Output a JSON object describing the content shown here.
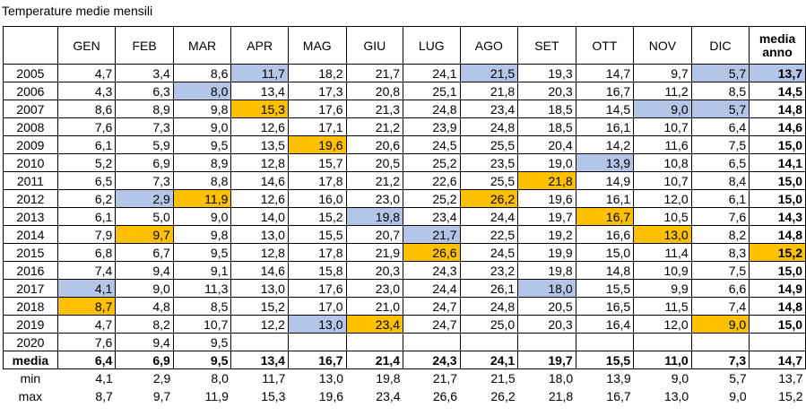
{
  "title": "Temperature medie mensili",
  "colors": {
    "min_highlight": "#b4c6e7",
    "max_highlight": "#ffc000"
  },
  "header": {
    "months": [
      "GEN",
      "FEB",
      "MAR",
      "APR",
      "MAG",
      "GIU",
      "LUG",
      "AGO",
      "SET",
      "OTT",
      "NOV",
      "DIC"
    ],
    "annual_line1": "media",
    "annual_line2": "anno"
  },
  "rows": [
    {
      "year": "2005",
      "values": [
        "4,7",
        "3,4",
        "8,6",
        "11,7",
        "18,2",
        "21,7",
        "24,1",
        "21,5",
        "19,3",
        "14,7",
        "9,7",
        "5,7"
      ],
      "annual": "13,7",
      "hl": [
        "",
        "",
        "",
        "blue",
        "",
        "",
        "",
        "blue",
        "",
        "",
        "",
        "blue"
      ],
      "annual_hl": "blue"
    },
    {
      "year": "2006",
      "values": [
        "4,3",
        "6,3",
        "8,0",
        "13,4",
        "17,3",
        "20,8",
        "25,1",
        "21,8",
        "20,3",
        "16,7",
        "11,2",
        "8,5"
      ],
      "annual": "14,5",
      "hl": [
        "",
        "",
        "blue",
        "",
        "",
        "",
        "",
        "",
        "",
        "",
        "",
        ""
      ],
      "annual_hl": ""
    },
    {
      "year": "2007",
      "values": [
        "8,6",
        "8,9",
        "9,8",
        "15,3",
        "17,6",
        "21,3",
        "24,8",
        "23,4",
        "18,5",
        "14,5",
        "9,0",
        "5,7"
      ],
      "annual": "14,8",
      "hl": [
        "",
        "",
        "",
        "orange",
        "",
        "",
        "",
        "",
        "",
        "",
        "blue",
        "blue"
      ],
      "annual_hl": ""
    },
    {
      "year": "2008",
      "values": [
        "7,6",
        "7,3",
        "9,0",
        "12,6",
        "17,1",
        "21,2",
        "23,9",
        "24,8",
        "18,5",
        "16,1",
        "10,7",
        "6,4"
      ],
      "annual": "14,6",
      "hl": [
        "",
        "",
        "",
        "",
        "",
        "",
        "",
        "",
        "",
        "",
        "",
        ""
      ],
      "annual_hl": ""
    },
    {
      "year": "2009",
      "values": [
        "6,1",
        "5,9",
        "9,5",
        "13,5",
        "19,6",
        "20,6",
        "24,5",
        "25,5",
        "20,4",
        "14,2",
        "11,6",
        "7,5"
      ],
      "annual": "15,0",
      "hl": [
        "",
        "",
        "",
        "",
        "orange",
        "",
        "",
        "",
        "",
        "",
        "",
        ""
      ],
      "annual_hl": ""
    },
    {
      "year": "2010",
      "values": [
        "5,2",
        "6,9",
        "8,9",
        "12,8",
        "15,7",
        "20,5",
        "25,2",
        "23,5",
        "19,0",
        "13,9",
        "10,8",
        "6,5"
      ],
      "annual": "14,1",
      "hl": [
        "",
        "",
        "",
        "",
        "",
        "",
        "",
        "",
        "",
        "blue",
        "",
        ""
      ],
      "annual_hl": ""
    },
    {
      "year": "2011",
      "values": [
        "6,5",
        "7,3",
        "8,8",
        "14,6",
        "17,8",
        "21,2",
        "22,6",
        "25,5",
        "21,8",
        "14,9",
        "10,7",
        "8,4"
      ],
      "annual": "15,0",
      "hl": [
        "",
        "",
        "",
        "",
        "",
        "",
        "",
        "",
        "orange",
        "",
        "",
        ""
      ],
      "annual_hl": ""
    },
    {
      "year": "2012",
      "values": [
        "6,2",
        "2,9",
        "11,9",
        "12,6",
        "16,0",
        "23,0",
        "25,2",
        "26,2",
        "19,6",
        "16,1",
        "12,0",
        "6,1"
      ],
      "annual": "15,0",
      "hl": [
        "",
        "blue",
        "orange",
        "",
        "",
        "",
        "",
        "orange",
        "",
        "",
        "",
        ""
      ],
      "annual_hl": ""
    },
    {
      "year": "2013",
      "values": [
        "6,1",
        "5,0",
        "9,0",
        "14,0",
        "15,2",
        "19,8",
        "23,4",
        "24,4",
        "19,7",
        "16,7",
        "10,5",
        "7,6"
      ],
      "annual": "14,3",
      "hl": [
        "",
        "",
        "",
        "",
        "",
        "blue",
        "",
        "",
        "",
        "orange",
        "",
        ""
      ],
      "annual_hl": ""
    },
    {
      "year": "2014",
      "values": [
        "7,9",
        "9,7",
        "9,8",
        "13,0",
        "15,5",
        "20,7",
        "21,7",
        "22,5",
        "19,2",
        "16,6",
        "13,0",
        "8,2"
      ],
      "annual": "14,8",
      "hl": [
        "",
        "orange",
        "",
        "",
        "",
        "",
        "blue",
        "",
        "",
        "",
        "orange",
        ""
      ],
      "annual_hl": ""
    },
    {
      "year": "2015",
      "values": [
        "6,8",
        "6,7",
        "9,5",
        "12,8",
        "17,8",
        "21,9",
        "26,6",
        "24,5",
        "19,9",
        "15,0",
        "11,4",
        "8,3"
      ],
      "annual": "15,2",
      "hl": [
        "",
        "",
        "",
        "",
        "",
        "",
        "orange",
        "",
        "",
        "",
        "",
        ""
      ],
      "annual_hl": "orange"
    },
    {
      "year": "2016",
      "values": [
        "7,4",
        "9,4",
        "9,1",
        "14,6",
        "15,8",
        "20,3",
        "24,3",
        "23,2",
        "19,8",
        "14,8",
        "10,9",
        "7,5"
      ],
      "annual": "15,0",
      "hl": [
        "",
        "",
        "",
        "",
        "",
        "",
        "",
        "",
        "",
        "",
        "",
        ""
      ],
      "annual_hl": ""
    },
    {
      "year": "2017",
      "values": [
        "4,1",
        "9,0",
        "11,3",
        "13,0",
        "17,6",
        "23,0",
        "24,4",
        "26,1",
        "18,0",
        "15,5",
        "9,9",
        "6,6"
      ],
      "annual": "14,9",
      "hl": [
        "blue",
        "",
        "",
        "",
        "",
        "",
        "",
        "",
        "blue",
        "",
        "",
        ""
      ],
      "annual_hl": ""
    },
    {
      "year": "2018",
      "values": [
        "8,7",
        "4,8",
        "8,5",
        "15,2",
        "17,0",
        "21,0",
        "24,7",
        "24,8",
        "20,5",
        "16,5",
        "11,5",
        "7,4"
      ],
      "annual": "14,8",
      "hl": [
        "orange",
        "",
        "",
        "",
        "",
        "",
        "",
        "",
        "",
        "",
        "",
        ""
      ],
      "annual_hl": ""
    },
    {
      "year": "2019",
      "values": [
        "4,7",
        "8,2",
        "10,7",
        "12,2",
        "13,0",
        "23,4",
        "24,7",
        "25,0",
        "20,3",
        "16,4",
        "12,0",
        "9,0"
      ],
      "annual": "15,0",
      "hl": [
        "",
        "",
        "",
        "",
        "blue",
        "orange",
        "",
        "",
        "",
        "",
        "",
        "orange"
      ],
      "annual_hl": ""
    },
    {
      "year": "2020",
      "values": [
        "7,6",
        "9,4",
        "9,5",
        "",
        "",
        "",
        "",
        "",
        "",
        "",
        "",
        ""
      ],
      "annual": "",
      "hl": [
        "",
        "",
        "",
        "",
        "",
        "",
        "",
        "",
        "",
        "",
        "",
        ""
      ],
      "annual_hl": ""
    }
  ],
  "media": {
    "label": "media",
    "values": [
      "6,4",
      "6,9",
      "9,5",
      "13,4",
      "16,7",
      "21,4",
      "24,3",
      "24,1",
      "19,7",
      "15,5",
      "11,0",
      "7,3"
    ],
    "annual": "14,7"
  },
  "min": {
    "label": "min",
    "values": [
      "4,1",
      "2,9",
      "8,0",
      "11,7",
      "13,0",
      "19,8",
      "21,7",
      "21,5",
      "18,0",
      "13,9",
      "9,0",
      "5,7"
    ],
    "annual": "13,7"
  },
  "max": {
    "label": "max",
    "values": [
      "8,7",
      "9,7",
      "11,9",
      "15,3",
      "19,6",
      "23,4",
      "26,6",
      "26,2",
      "21,8",
      "16,7",
      "13,0",
      "9,0"
    ],
    "annual": "15,2"
  }
}
